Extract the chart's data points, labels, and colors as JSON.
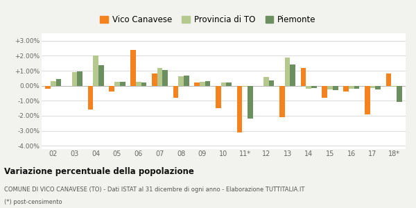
{
  "years": [
    "02",
    "03",
    "04",
    "05",
    "06",
    "07",
    "08",
    "09",
    "10",
    "11*",
    "12",
    "13",
    "14",
    "15",
    "16",
    "17",
    "18*"
  ],
  "vico": [
    -0.2,
    0.0,
    -1.6,
    -0.4,
    2.4,
    0.8,
    -0.8,
    0.2,
    -1.5,
    -3.1,
    0.0,
    -2.1,
    1.2,
    -0.8,
    -0.4,
    -1.9,
    0.8
  ],
  "provincia": [
    0.3,
    0.9,
    2.0,
    0.25,
    0.25,
    1.2,
    0.65,
    0.25,
    0.2,
    -0.05,
    0.6,
    1.9,
    -0.2,
    -0.25,
    -0.2,
    -0.15,
    -0.05
  ],
  "piemonte": [
    0.45,
    0.95,
    1.35,
    0.25,
    0.2,
    1.05,
    0.7,
    0.3,
    0.22,
    -2.2,
    0.35,
    1.4,
    -0.15,
    -0.3,
    -0.2,
    -0.25,
    -1.1
  ],
  "color_vico": "#f4831f",
  "color_provincia": "#b5c98e",
  "color_piemonte": "#6b8f5e",
  "ylim": [
    -4.2,
    3.5
  ],
  "yticks": [
    -4.0,
    -3.0,
    -2.0,
    -1.0,
    0.0,
    1.0,
    2.0,
    3.0
  ],
  "ytick_labels": [
    "-4.00%",
    "-3.00%",
    "-2.00%",
    "-1.00%",
    "0.00%",
    "+1.00%",
    "+2.00%",
    "+3.00%"
  ],
  "legend_labels": [
    "Vico Canavese",
    "Provincia di TO",
    "Piemonte"
  ],
  "title": "Variazione percentuale della popolazione",
  "footer1": "COMUNE DI VICO CANAVESE (TO) - Dati ISTAT al 31 dicembre di ogni anno - Elaborazione TUTTITALIA.IT",
  "footer2": "(*) post-censimento",
  "bg_color": "#f2f2ee",
  "plot_bg": "#ffffff"
}
